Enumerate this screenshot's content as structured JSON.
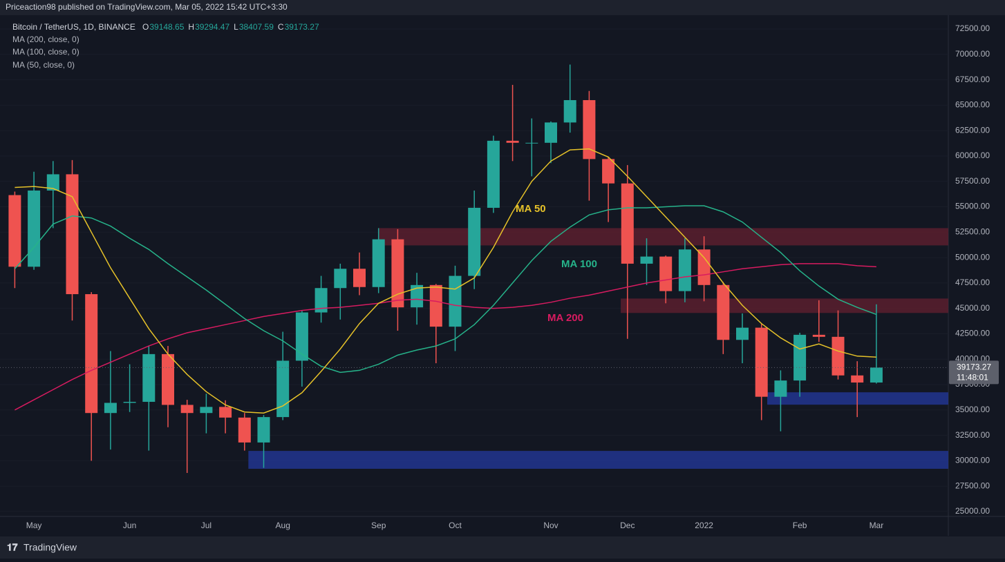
{
  "header": "Priceaction98 published on TradingView.com, Mar 05, 2022 15:42 UTC+3:30",
  "footer": "TradingView",
  "chart_data": {
    "type": "candlestick",
    "title": "Bitcoin / TetherUS, 1D, BINANCE",
    "ohlc_legend": [
      {
        "label": "O",
        "value": 39148.65
      },
      {
        "label": "H",
        "value": 39294.47
      },
      {
        "label": "L",
        "value": 38407.59
      },
      {
        "label": "C",
        "value": 39173.27
      }
    ],
    "countdown": "11:48:01",
    "up_color": "#26a69a",
    "down_color": "#ef5350",
    "categories": [
      null,
      "May",
      null,
      null,
      null,
      null,
      "Jun",
      null,
      null,
      null,
      "Jul",
      null,
      null,
      null,
      "Aug",
      null,
      null,
      null,
      null,
      "Sep",
      null,
      null,
      null,
      "Oct",
      null,
      null,
      null,
      null,
      "Nov",
      null,
      null,
      null,
      "Dec",
      null,
      null,
      null,
      "2022",
      null,
      null,
      null,
      null,
      "Feb",
      null,
      null,
      null,
      "Mar"
    ],
    "open": [
      56150,
      49100,
      56600,
      58200,
      46400,
      34700,
      35700,
      35800,
      40500,
      35500,
      34700,
      35300,
      34250,
      31800,
      34300,
      39850,
      44600,
      47000,
      48900,
      47100,
      51800,
      45100,
      47300,
      43200,
      48200,
      54900,
      61500,
      61300,
      61300,
      63300,
      65500,
      59700,
      57300,
      49400,
      50100,
      46700,
      50800,
      47300,
      41900,
      43100,
      36300,
      37900,
      42400,
      42200,
      38400,
      37700
    ],
    "high": [
      56500,
      58450,
      59500,
      59600,
      46600,
      40800,
      39500,
      41300,
      41300,
      36000,
      36600,
      35950,
      34700,
      34500,
      42700,
      44800,
      48200,
      49400,
      50500,
      52900,
      52800,
      48500,
      47400,
      49200,
      56600,
      62000,
      67000,
      63700,
      63400,
      69000,
      66400,
      59900,
      59100,
      51900,
      50200,
      51900,
      52100,
      47600,
      44500,
      43500,
      38900,
      42600,
      45800,
      44800,
      39800,
      45400
    ],
    "low": [
      47000,
      48800,
      52900,
      43800,
      30000,
      31100,
      34800,
      31000,
      33300,
      28800,
      32700,
      32700,
      31000,
      29300,
      34000,
      37300,
      43600,
      43900,
      46300,
      46500,
      42800,
      43400,
      39600,
      40800,
      46900,
      54400,
      59500,
      58000,
      59300,
      62300,
      55600,
      53500,
      42000,
      47300,
      45500,
      45600,
      45700,
      40500,
      39600,
      34000,
      32900,
      36300,
      41700,
      38000,
      34300,
      37600
    ],
    "close": [
      49100,
      56600,
      58200,
      46400,
      34700,
      35700,
      35800,
      40500,
      35500,
      34700,
      35300,
      34250,
      31800,
      34300,
      39850,
      44600,
      47000,
      48900,
      47100,
      51800,
      45100,
      47300,
      43200,
      48200,
      54900,
      61500,
      61300,
      61300,
      63300,
      65500,
      59700,
      57300,
      49400,
      50100,
      46700,
      50800,
      47300,
      41900,
      43100,
      36300,
      37900,
      42400,
      42200,
      38400,
      37700,
      39173.27
    ],
    "ma_lines": [
      {
        "name": "MA (200, close, 0)",
        "color": "#d81b60",
        "values": [
          35000,
          36000,
          37000,
          38000,
          38900,
          39700,
          40500,
          41300,
          42000,
          42600,
          43000,
          43400,
          43800,
          44200,
          44500,
          44800,
          45000,
          45100,
          45300,
          45500,
          45800,
          45900,
          45700,
          45300,
          45100,
          45000,
          45100,
          45300,
          45600,
          46000,
          46300,
          46700,
          47100,
          47500,
          47800,
          48100,
          48300,
          48600,
          48900,
          49100,
          49300,
          49400,
          49400,
          49400,
          49200,
          49100
        ]
      },
      {
        "name": "MA (100, close, 0)",
        "color": "#26b38a",
        "values": [
          48900,
          51000,
          53300,
          54100,
          53900,
          53100,
          51900,
          50800,
          49400,
          48100,
          46800,
          45400,
          44000,
          42800,
          41800,
          40500,
          39300,
          38700,
          38900,
          39500,
          40400,
          40900,
          41300,
          42000,
          43400,
          45300,
          47500,
          49700,
          51600,
          53000,
          54200,
          54700,
          54900,
          54900,
          55000,
          55100,
          55100,
          54500,
          53500,
          52000,
          50500,
          48700,
          47200,
          45900,
          45100,
          44400
        ]
      },
      {
        "name": "MA (50, close, 0)",
        "color": "#e6c229",
        "values": [
          56900,
          57000,
          56800,
          56000,
          52500,
          49000,
          46000,
          43000,
          40500,
          38500,
          36800,
          35500,
          34800,
          34700,
          35400,
          36700,
          38800,
          41000,
          43500,
          45500,
          46400,
          47000,
          47100,
          46900,
          48000,
          51000,
          54500,
          57500,
          59500,
          60600,
          60700,
          59900,
          58000,
          56000,
          54000,
          52000,
          50000,
          47500,
          45300,
          43500,
          42100,
          41000,
          41500,
          40800,
          40300,
          40200
        ]
      }
    ],
    "annotations": [
      {
        "text": "MA 50",
        "color": "#e6c229"
      },
      {
        "text": "MA 100",
        "color": "#26b38a"
      },
      {
        "text": "MA 200",
        "color": "#d81b60"
      }
    ],
    "zones": [
      {
        "x_start": 19.5,
        "y0": 51200,
        "y1": 52900,
        "color": "#5a1f2e"
      },
      {
        "x_start": 32.15,
        "y0": 44550,
        "y1": 45970,
        "color": "#5a1f2e"
      },
      {
        "x_start": 39.8,
        "y0": 35520,
        "y1": 36740,
        "color": "#22358f"
      },
      {
        "x_start": 12.7,
        "y0": 29210,
        "y1": 30970,
        "color": "#22358f"
      }
    ],
    "ylim": [
      24520,
      73860
    ],
    "yticks": [
      {
        "value": 25000,
        "label": "25000.00"
      },
      {
        "value": 27500,
        "label": "27500.00"
      },
      {
        "value": 30000,
        "label": "30000.00"
      },
      {
        "value": 32500,
        "label": "32500.00"
      },
      {
        "value": 35000,
        "label": "35000.00"
      },
      {
        "value": 37500,
        "label": "37500.00"
      },
      {
        "value": 40000,
        "label": "40000.00"
      },
      {
        "value": 42500,
        "label": "42500.00"
      },
      {
        "value": 45000,
        "label": "45000.00"
      },
      {
        "value": 47500,
        "label": "47500.00"
      },
      {
        "value": 50000,
        "label": "50000.00"
      },
      {
        "value": 52500,
        "label": "52500.00"
      },
      {
        "value": 55000,
        "label": "55000.00"
      },
      {
        "value": 57500,
        "label": "57500.00"
      },
      {
        "value": 60000,
        "label": "60000.00"
      },
      {
        "value": 62500,
        "label": "62500.00"
      },
      {
        "value": 65000,
        "label": "65000.00"
      },
      {
        "value": 67500,
        "label": "67500.00"
      },
      {
        "value": 70000,
        "label": "70000.00"
      },
      {
        "value": 72500,
        "label": "72500.00"
      }
    ],
    "grid": true
  }
}
